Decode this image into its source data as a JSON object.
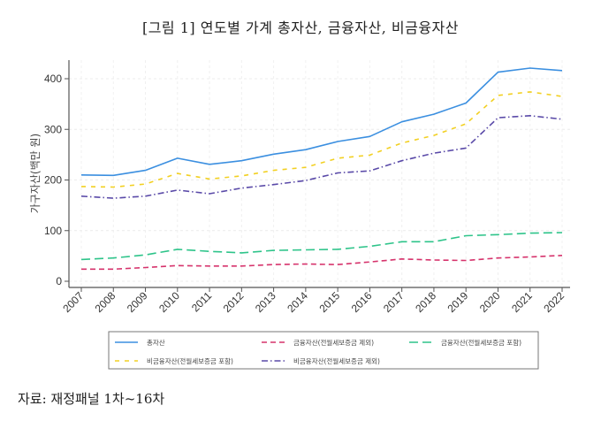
{
  "title": "[그림 1] 연도별 가계 총자산, 금융자산, 비금융자산",
  "source": "자료: 재정패널 1차~16차",
  "chart_data": {
    "type": "line",
    "title": "[그림 1] 연도별 가계 총자산, 금융자산, 비금융자산",
    "xlabel": "",
    "ylabel": "가구자산(백만 원)",
    "x": [
      "2007",
      "2008",
      "2009",
      "2010",
      "2011",
      "2012",
      "2013",
      "2014",
      "2015",
      "2016",
      "2017",
      "2018",
      "2019",
      "2020",
      "2021",
      "2022"
    ],
    "ylim": [
      0,
      430
    ],
    "yticks": [
      0,
      100,
      200,
      300,
      400
    ],
    "grid": true,
    "legend_position": "bottom",
    "series": [
      {
        "name": "총자산",
        "color": "#3b8fe0",
        "dash": "solid",
        "values": [
          210,
          209,
          219,
          243,
          231,
          238,
          251,
          260,
          276,
          286,
          315,
          330,
          352,
          413,
          421,
          416
        ]
      },
      {
        "name": "금융자산(전월세보증금 제외)",
        "color": "#d6336c",
        "dash": "dash",
        "values": [
          24,
          24,
          27,
          31,
          30,
          30,
          33,
          34,
          33,
          38,
          44,
          42,
          41,
          46,
          48,
          51
        ]
      },
      {
        "name": "금융자산(전월세보증금 포함)",
        "color": "#2ec48a",
        "dash": "longdash",
        "values": [
          43,
          46,
          52,
          63,
          59,
          56,
          61,
          62,
          63,
          69,
          78,
          78,
          90,
          92,
          95,
          96
        ]
      },
      {
        "name": "비금융자산(전월세보증금 포함)",
        "color": "#f2d022",
        "dash": "shortdash",
        "values": [
          187,
          186,
          192,
          213,
          202,
          208,
          219,
          225,
          243,
          249,
          273,
          288,
          311,
          367,
          374,
          365
        ]
      },
      {
        "name": "비금융자산(전월세보증금 제외)",
        "color": "#5a4aa8",
        "dash": "dashdot",
        "values": [
          168,
          164,
          168,
          180,
          173,
          184,
          191,
          199,
          214,
          218,
          238,
          253,
          263,
          323,
          327,
          320
        ]
      }
    ]
  }
}
